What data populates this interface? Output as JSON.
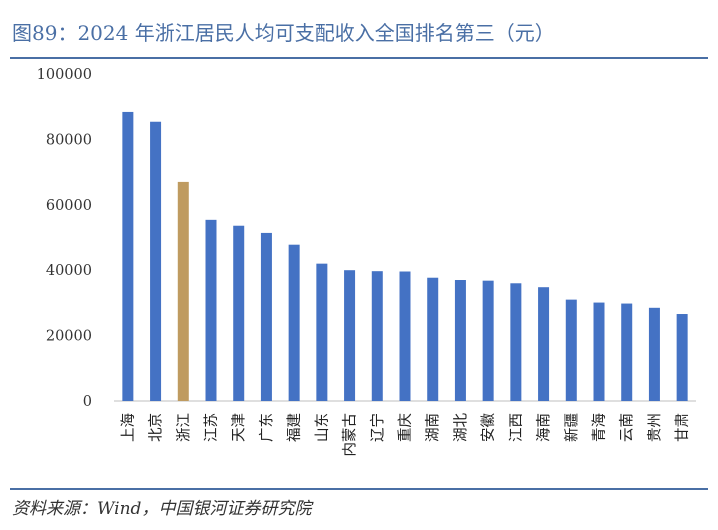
{
  "title": "图89：2024 年浙江居民人均可支配收入全国排名第三（元）",
  "source": "资料来源：Wind，中国银河证券研究院",
  "colors": {
    "bar": "#4472c4",
    "highlight": "#bf9b60",
    "rule": "#4a6fa5"
  },
  "chart_data": {
    "type": "bar",
    "categories": [
      "上海",
      "北京",
      "浙江",
      "江苏",
      "天津",
      "广东",
      "福建",
      "山东",
      "内蒙古",
      "辽宁",
      "重庆",
      "湖南",
      "湖北",
      "安徽",
      "江西",
      "海南",
      "新疆",
      "青海",
      "云南",
      "贵州",
      "甘肃"
    ],
    "values": [
      88400,
      85400,
      67000,
      55400,
      53600,
      51400,
      47800,
      42000,
      40000,
      39700,
      39600,
      37700,
      37000,
      36800,
      36000,
      34800,
      31000,
      30100,
      29800,
      28500,
      26600
    ],
    "highlight_index": 2,
    "ylim": [
      0,
      100000
    ],
    "yticks": [
      "0",
      "20000",
      "40000",
      "60000",
      "80000",
      "100000"
    ],
    "grid": false,
    "legend": "none"
  }
}
